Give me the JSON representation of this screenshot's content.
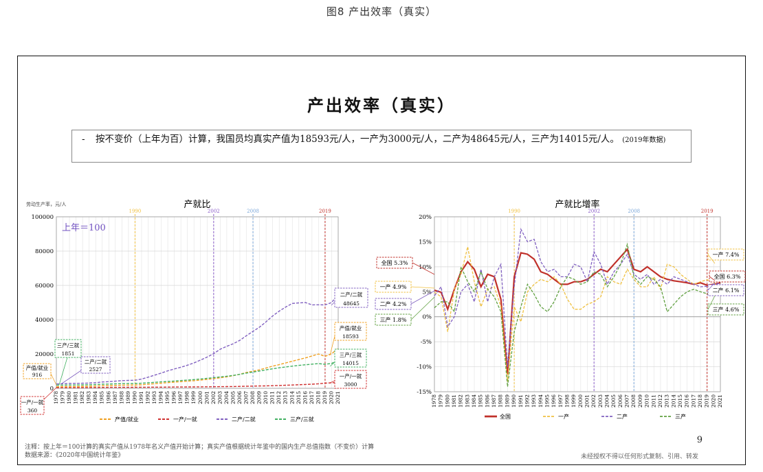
{
  "figure_caption": "图8 产出效率（真实）",
  "slide": {
    "title": "产出效率（真实）",
    "summary_dash": "-",
    "summary_text": "按不变价（上年为百）计算，我国员均真实产值为18593元/人，一产为3000元/人，二产为48645元/人，三产为14015元/人。",
    "summary_note": "(2019年数据)",
    "page_number": "9",
    "footnote_1": "注释：按上年＝100计算的真实产值从1978年名义产值开始计算；真实产值根据统计年鉴中的国内生产总值指数（不变价）计算",
    "footnote_2": "数据来源：《2020年中国统计年鉴》",
    "copyright": "未经授权不得以任何形式复制、引用、转发"
  },
  "chart_data": [
    {
      "type": "line",
      "title": "产就比",
      "ylabel": "劳动生产率，元/人",
      "ylim": [
        0,
        100000
      ],
      "yticks": [
        0,
        20000,
        40000,
        60000,
        80000,
        100000
      ],
      "annotation": "上年＝100",
      "x": [
        1978,
        1979,
        1980,
        1981,
        1982,
        1983,
        1984,
        1985,
        1986,
        1987,
        1988,
        1989,
        1990,
        1991,
        1992,
        1993,
        1994,
        1995,
        1996,
        1997,
        1998,
        1999,
        2000,
        2001,
        2002,
        2003,
        2004,
        2005,
        2006,
        2007,
        2008,
        2009,
        2010,
        2011,
        2012,
        2013,
        2014,
        2015,
        2016,
        2017,
        2018,
        2019,
        2020,
        2021
      ],
      "x_tick_labels": [
        "1978",
        "1979",
        "1980",
        "1981",
        "1982",
        "1983",
        "1984",
        "1985",
        "1986",
        "1987",
        "1988",
        "1989",
        "1990",
        "1991",
        "1992",
        "1993",
        "1994",
        "1995",
        "1996",
        "1997",
        "1998",
        "1999",
        "2000",
        "2001",
        "2002",
        "2003",
        "2004",
        "2005",
        "2006",
        "2007",
        "2008",
        "2009",
        "2010",
        "2011",
        "2012",
        "2013",
        "2014",
        "2015",
        "2016",
        "2017",
        "2018",
        "2019",
        "2020",
        "2021"
      ],
      "vlines": [
        {
          "x": 1990,
          "label": "1990",
          "color": "#f0c040"
        },
        {
          "x": 2002,
          "label": "2002",
          "color": "#8a5cc8"
        },
        {
          "x": 2008,
          "label": "2008",
          "color": "#7aa6d8"
        },
        {
          "x": 2019,
          "label": "2019",
          "color": "#c0302a"
        }
      ],
      "series": [
        {
          "name": "产值/就业",
          "color": "#f0a020",
          "values": [
            916,
            980,
            1010,
            1060,
            1120,
            1190,
            1320,
            1470,
            1560,
            1690,
            1840,
            1870,
            1920,
            2100,
            2370,
            2690,
            3010,
            3310,
            3600,
            3890,
            4160,
            4450,
            4800,
            5180,
            5650,
            6130,
            6700,
            7380,
            8190,
            9230,
            9970,
            10800,
            11830,
            12910,
            13800,
            14790,
            15780,
            16750,
            17730,
            18840,
            19990,
            18593,
            20200,
            23200
          ]
        },
        {
          "name": "一产/一就",
          "color": "#d03030",
          "values": [
            360,
            368,
            372,
            380,
            400,
            430,
            480,
            520,
            540,
            560,
            580,
            600,
            610,
            630,
            650,
            670,
            700,
            720,
            750,
            770,
            800,
            820,
            850,
            880,
            910,
            950,
            1000,
            1060,
            1120,
            1190,
            1270,
            1340,
            1420,
            1520,
            1640,
            1780,
            1920,
            2070,
            2230,
            2420,
            2640,
            3000,
            3200,
            3500
          ]
        },
        {
          "name": "二产/二就",
          "color": "#8060c0",
          "values": [
            2527,
            2700,
            2850,
            2900,
            2950,
            3050,
            3300,
            3700,
            3900,
            4150,
            4500,
            4600,
            4700,
            5400,
            6500,
            7700,
            8900,
            10200,
            11300,
            12300,
            13500,
            14800,
            16500,
            18200,
            20200,
            22800,
            24500,
            26000,
            28000,
            30700,
            33200,
            35700,
            38800,
            42200,
            45000,
            47400,
            49500,
            49800,
            50000,
            48645,
            48700,
            48645,
            50000,
            55000
          ]
        },
        {
          "name": "三产/三就",
          "color": "#40b060",
          "values": [
            1851,
            1900,
            1920,
            1970,
            2020,
            2080,
            2220,
            2420,
            2500,
            2620,
            2760,
            2760,
            2790,
            2950,
            3200,
            3480,
            3750,
            4000,
            4250,
            4520,
            4800,
            5100,
            5450,
            5820,
            6220,
            6640,
            7050,
            7530,
            8140,
            8870,
            9480,
            10100,
            10750,
            11390,
            11960,
            12430,
            12920,
            13340,
            13720,
            14100,
            14400,
            14015,
            14500,
            16500
          ]
        }
      ],
      "callouts": [
        {
          "series": "产值/就业",
          "label": "产值/就业",
          "value": "916",
          "color": "#f0a020"
        },
        {
          "series": "一产/一就",
          "label": "一产/一就",
          "value": "360",
          "color": "#d03030"
        },
        {
          "series": "二产/二就",
          "label": "二产/二就",
          "value": "2527",
          "color": "#8060c0"
        },
        {
          "series": "三产/三就",
          "label": "三产/三就",
          "value": "1851",
          "color": "#40b060"
        },
        {
          "series": "二产/二就",
          "label": "二产/二就",
          "value": "48645",
          "color": "#8060c0"
        },
        {
          "series": "产值/就业",
          "label": "产值/就业",
          "value": "18593",
          "color": "#f0a020"
        },
        {
          "series": "三产/三就",
          "label": "三产/三就",
          "value": "14015",
          "color": "#40b060"
        },
        {
          "series": "一产/一就",
          "label": "一产/一就",
          "value": "3000",
          "color": "#d03030"
        }
      ]
    },
    {
      "type": "line",
      "title": "产就比增率",
      "ylim": [
        -15,
        20
      ],
      "yticks": [
        -15,
        -10,
        -5,
        0,
        5,
        10,
        15,
        20
      ],
      "ytick_labels": [
        "-15%",
        "-10%",
        "-5%",
        "0%",
        "5%",
        "10%",
        "15%",
        "20%"
      ],
      "x": [
        1978,
        1979,
        1980,
        1981,
        1982,
        1983,
        1984,
        1985,
        1986,
        1987,
        1988,
        1989,
        1990,
        1991,
        1992,
        1993,
        1994,
        1995,
        1996,
        1997,
        1998,
        1999,
        2000,
        2001,
        2002,
        2003,
        2004,
        2005,
        2006,
        2007,
        2008,
        2009,
        2010,
        2011,
        2012,
        2013,
        2014,
        2015,
        2016,
        2017,
        2018,
        2019,
        2020,
        2021
      ],
      "x_tick_labels": [
        "1978",
        "1979",
        "1980",
        "1981",
        "1982",
        "1983",
        "1984",
        "1985",
        "1986",
        "1987",
        "1988",
        "1989",
        "1990",
        "1991",
        "1992",
        "1993",
        "1994",
        "1995",
        "1996",
        "1997",
        "1998",
        "1999",
        "2000",
        "2001",
        "2002",
        "2003",
        "2004",
        "2005",
        "2006",
        "2007",
        "2008",
        "2009",
        "2010",
        "2011",
        "2012",
        "2013",
        "2014",
        "2015",
        "2016",
        "2017",
        "2018",
        "2019",
        "2020",
        "2021"
      ],
      "vlines": [
        {
          "x": 1990,
          "label": "1990",
          "color": "#f0c040"
        },
        {
          "x": 2002,
          "label": "2002",
          "color": "#8a5cc8"
        },
        {
          "x": 2008,
          "label": "2008",
          "color": "#7aa6d8"
        },
        {
          "x": 2019,
          "label": "2019",
          "color": "#c0302a"
        }
      ],
      "series": [
        {
          "name": "全国",
          "color": "#c0302a",
          "values": [
            5.3,
            4.9,
            1.5,
            5.5,
            9.0,
            11.0,
            9.5,
            6.0,
            8.5,
            8.0,
            3.5,
            -11.5,
            8.0,
            12.8,
            12.5,
            11.5,
            9.0,
            8.5,
            7.5,
            6.5,
            6.5,
            7.0,
            7.0,
            7.5,
            8.5,
            9.5,
            9.0,
            10.5,
            12.0,
            13.5,
            9.5,
            9.0,
            10.0,
            9.0,
            8.0,
            7.5,
            7.2,
            7.0,
            6.8,
            6.5,
            6.8,
            6.3,
            6.5,
            6.8
          ]
        },
        {
          "name": "一产",
          "color": "#f0c040",
          "values": [
            4.9,
            4.0,
            -3.0,
            5.5,
            8.5,
            14.0,
            7.0,
            2.0,
            5.5,
            6.0,
            2.0,
            -13.0,
            2.0,
            -1.0,
            5.0,
            6.5,
            7.5,
            7.0,
            8.0,
            6.5,
            3.5,
            1.5,
            1.5,
            2.5,
            3.0,
            4.0,
            8.0,
            7.0,
            6.5,
            9.5,
            7.5,
            6.0,
            6.0,
            8.0,
            5.5,
            10.5,
            10.0,
            8.5,
            7.5,
            6.5,
            7.0,
            7.4,
            7.0,
            5.0
          ]
        },
        {
          "name": "二产",
          "color": "#8060c0",
          "values": [
            4.2,
            6.0,
            -2.0,
            0.0,
            5.0,
            6.5,
            3.0,
            9.5,
            3.0,
            8.0,
            10.5,
            -10.0,
            6.0,
            17.5,
            15.0,
            15.5,
            11.0,
            9.0,
            9.5,
            8.0,
            8.0,
            10.5,
            10.0,
            7.0,
            13.0,
            10.5,
            6.5,
            9.0,
            10.5,
            12.5,
            8.5,
            7.5,
            8.5,
            6.5,
            7.5,
            6.5,
            8.0,
            7.5,
            7.0,
            6.5,
            6.0,
            6.1,
            6.5,
            6.7
          ]
        },
        {
          "name": "三产",
          "color": "#60a040",
          "values": [
            1.8,
            3.0,
            3.0,
            1.0,
            10.0,
            7.0,
            5.0,
            9.0,
            5.5,
            4.0,
            1.0,
            -14.0,
            -3.0,
            2.0,
            6.5,
            4.5,
            2.0,
            1.0,
            3.0,
            6.0,
            8.0,
            7.5,
            6.5,
            7.0,
            9.0,
            8.5,
            6.0,
            8.0,
            10.5,
            14.5,
            8.0,
            6.5,
            8.0,
            7.5,
            6.0,
            1.0,
            2.5,
            4.0,
            5.0,
            5.5,
            5.0,
            4.6,
            4.5,
            4.8
          ]
        }
      ],
      "callouts": [
        {
          "series": "全国",
          "label": "全国",
          "value": "5.3%",
          "color": "#c0302a"
        },
        {
          "series": "一产",
          "label": "一产",
          "value": "4.9%",
          "color": "#f0c040"
        },
        {
          "series": "二产",
          "label": "二产",
          "value": "4.2%",
          "color": "#8060c0"
        },
        {
          "series": "三产",
          "label": "三产",
          "value": "1.8%",
          "color": "#60a040"
        },
        {
          "series": "一产",
          "label": "一产",
          "value": "7.4%",
          "color": "#f0c040"
        },
        {
          "series": "全国",
          "label": "全国",
          "value": "6.3%",
          "color": "#c0302a"
        },
        {
          "series": "二产",
          "label": "二产",
          "value": "6.1%",
          "color": "#8060c0"
        },
        {
          "series": "三产",
          "label": "三产",
          "value": "4.6%",
          "color": "#60a040"
        }
      ]
    }
  ]
}
